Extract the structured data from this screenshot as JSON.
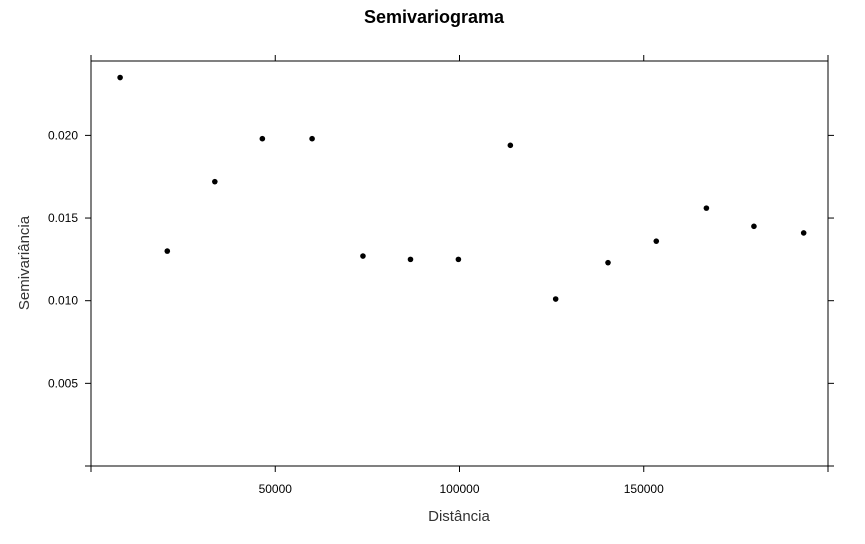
{
  "chart_data": {
    "type": "scatter",
    "title": "Semivariograma",
    "xlabel": "Distância",
    "ylabel": "Semivariância",
    "xlim": [
      0,
      200000
    ],
    "ylim": [
      0,
      0.0245
    ],
    "x_ticks": [
      50000,
      100000,
      150000
    ],
    "x_tick_labels": [
      "50000",
      "100000",
      "150000"
    ],
    "y_ticks": [
      0.005,
      0.01,
      0.015,
      0.02
    ],
    "y_tick_labels": [
      "0.005",
      "0.010",
      "0.015",
      "0.020"
    ],
    "grid": false,
    "point_color": "#000000",
    "points": [
      {
        "x": 7900,
        "y": 0.0235
      },
      {
        "x": 20700,
        "y": 0.013
      },
      {
        "x": 33600,
        "y": 0.0172
      },
      {
        "x": 46500,
        "y": 0.0198
      },
      {
        "x": 60000,
        "y": 0.0198
      },
      {
        "x": 73800,
        "y": 0.0127
      },
      {
        "x": 86700,
        "y": 0.0125
      },
      {
        "x": 99700,
        "y": 0.0125
      },
      {
        "x": 113800,
        "y": 0.0194
      },
      {
        "x": 126100,
        "y": 0.0101
      },
      {
        "x": 140300,
        "y": 0.0123
      },
      {
        "x": 153400,
        "y": 0.0136
      },
      {
        "x": 167000,
        "y": 0.0156
      },
      {
        "x": 179900,
        "y": 0.0145
      },
      {
        "x": 193400,
        "y": 0.0141
      }
    ]
  }
}
